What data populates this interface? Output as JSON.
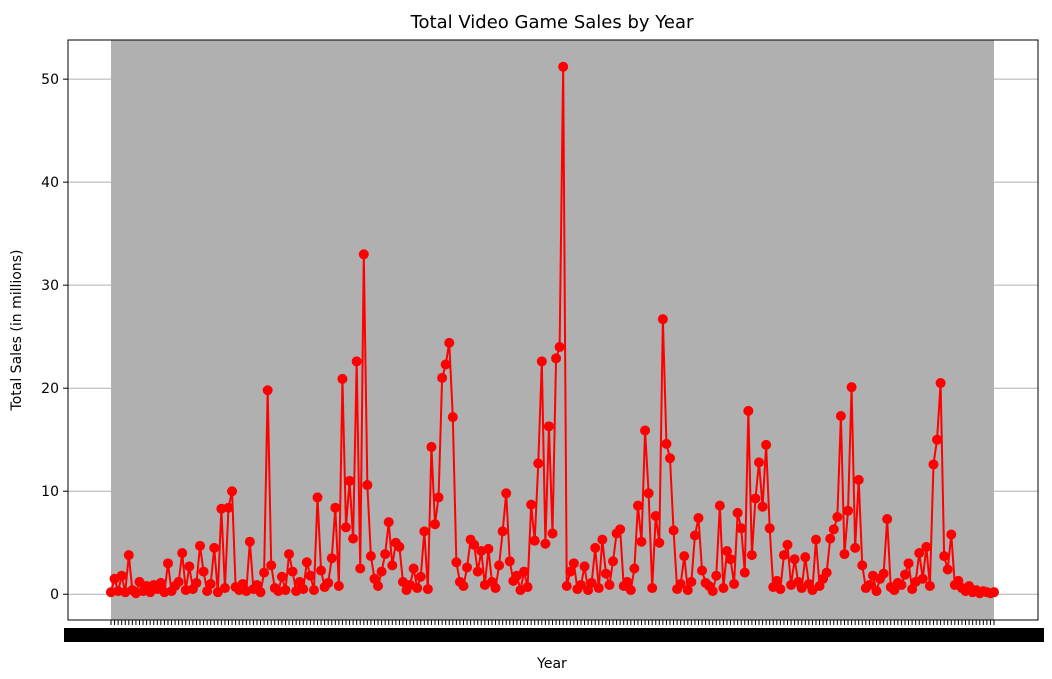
{
  "chart_data": {
    "type": "line",
    "title": "Total Video Game Sales by Year",
    "xlabel": "Year",
    "ylabel": "Total Sales (in millions)",
    "ylim": [
      -2.5,
      53.8
    ],
    "yticks": [
      0,
      10,
      20,
      30,
      40,
      50
    ],
    "ytick_labels": [
      "0",
      "10",
      "20",
      "30",
      "40",
      "50"
    ],
    "grid": "horizontal",
    "legend": "none",
    "x_tick_labels_overlapping": true,
    "colors": {
      "series": "#ff0000",
      "plot_background": "#b0b0b0",
      "grid": "#b0b0b0"
    },
    "series": [
      {
        "values": [
          0.2,
          1.5,
          0.3,
          1.8,
          0.2,
          3.8,
          0.4,
          0.1,
          1.2,
          0.3,
          0.8,
          0.2,
          0.9,
          0.5,
          1.1,
          0.2,
          3.0,
          0.3,
          0.8,
          1.2,
          4.0,
          0.4,
          2.7,
          0.5,
          1.1,
          4.7,
          2.2,
          0.3,
          1.0,
          4.5,
          0.2,
          8.3,
          0.6,
          8.4,
          10.0,
          0.7,
          0.4,
          1.0,
          0.3,
          5.1,
          0.5,
          0.9,
          0.2,
          2.1,
          19.8,
          2.8,
          0.6,
          0.3,
          1.7,
          0.4,
          3.9,
          2.2,
          0.3,
          1.2,
          0.5,
          3.1,
          1.8,
          0.4,
          9.4,
          2.3,
          0.7,
          1.1,
          3.5,
          8.4,
          0.8,
          20.9,
          6.5,
          11.0,
          5.4,
          22.6,
          2.5,
          33.0,
          10.6,
          3.7,
          1.5,
          0.8,
          2.2,
          3.9,
          7.0,
          2.8,
          5.0,
          4.6,
          1.2,
          0.4,
          0.9,
          2.5,
          0.6,
          1.7,
          6.1,
          0.5,
          14.3,
          6.8,
          9.4,
          21.0,
          22.3,
          24.4,
          17.2,
          3.1,
          1.2,
          0.8,
          2.6,
          5.3,
          4.8,
          2.2,
          4.2,
          0.9,
          4.4,
          1.2,
          0.6,
          2.8,
          6.1,
          9.8,
          3.2,
          1.3,
          1.8,
          0.4,
          2.2,
          0.7,
          8.7,
          5.2,
          12.7,
          22.6,
          4.9,
          16.3,
          5.9,
          22.9,
          24.0,
          51.2,
          0.8,
          2.2,
          3.0,
          0.5,
          0.9,
          2.7,
          0.4,
          1.1,
          4.5,
          0.6,
          5.3,
          2.0,
          0.9,
          3.2,
          5.9,
          6.3,
          0.8,
          1.2,
          0.4,
          2.5,
          8.6,
          5.1,
          15.9,
          9.8,
          0.6,
          7.6,
          5.0,
          26.7,
          14.6,
          13.2,
          6.2,
          0.5,
          1.0,
          3.7,
          0.4,
          1.2,
          5.7,
          7.4,
          2.3,
          1.1,
          0.8,
          0.3,
          1.8,
          8.6,
          0.6,
          4.2,
          3.4,
          1.0,
          7.9,
          6.4,
          2.1,
          17.8,
          3.8,
          9.3,
          12.8,
          8.5,
          14.5,
          6.4,
          0.7,
          1.3,
          0.5,
          3.8,
          4.8,
          0.9,
          3.4,
          1.2,
          0.6,
          3.6,
          1.0,
          0.4,
          5.3,
          0.8,
          1.5,
          2.1,
          5.4,
          6.3,
          7.5,
          17.3,
          3.9,
          8.1,
          20.1,
          4.5,
          11.1,
          2.8,
          0.6,
          0.9,
          1.8,
          0.3,
          1.5,
          2.0,
          7.3,
          0.7,
          0.4,
          1.1,
          0.9,
          1.9,
          3.0,
          0.5,
          1.2,
          4.0,
          1.5,
          4.6,
          0.8,
          12.6,
          15.0,
          20.5,
          3.7,
          2.4,
          5.8,
          0.9,
          1.3,
          0.6,
          0.3,
          0.8,
          0.2,
          0.4,
          0.1,
          0.3,
          0.2,
          0.1,
          0.2
        ]
      }
    ]
  }
}
